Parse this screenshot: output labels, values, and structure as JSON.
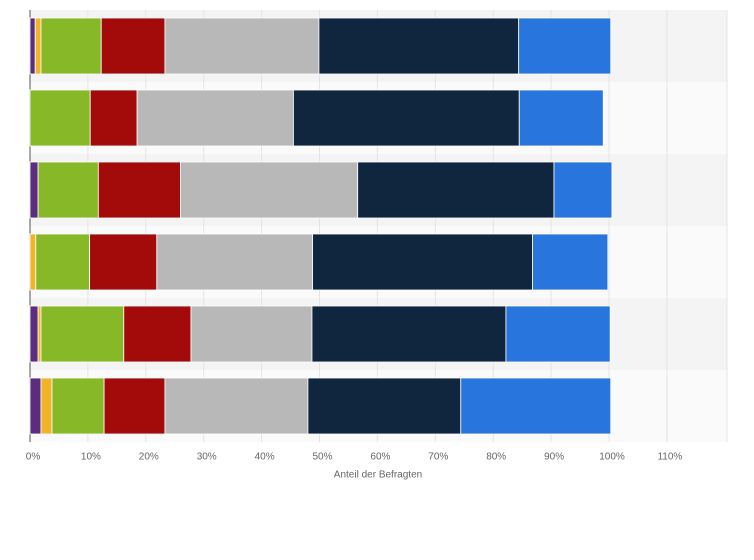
{
  "chart_data": {
    "type": "stacked-bar-horizontal",
    "x_label": "Anteil der Befragten",
    "categories": [
      null,
      null,
      null,
      null,
      null,
      null
    ],
    "series": [
      {
        "color": "#5c2d7f",
        "values": [
          0.9,
          0,
          1.4,
          0,
          1.4,
          1.9
        ]
      },
      {
        "color": "#f0b429",
        "values": [
          1,
          0,
          0,
          1,
          0.5,
          1.9
        ]
      },
      {
        "color": "#86b828",
        "values": [
          10.4,
          10.4,
          10.4,
          9.3,
          14.3,
          9
        ]
      },
      {
        "color": "#a30a0a",
        "values": [
          11,
          8.1,
          14.2,
          11.6,
          11.6,
          10.5
        ]
      },
      {
        "color": "#b8b8b8",
        "values": [
          26.6,
          27,
          30.6,
          26.9,
          20.9,
          24.7
        ]
      },
      {
        "color": "#10263f",
        "values": [
          34.5,
          39,
          33.9,
          38,
          33.5,
          26.4
        ]
      },
      {
        "color": "#2876dd",
        "values": [
          15.9,
          14.5,
          10,
          13,
          18,
          25.9
        ]
      }
    ],
    "xlim": [
      0,
      120
    ],
    "xticks": [
      {
        "value": 0,
        "label": "0%"
      },
      {
        "value": 10,
        "label": "10%"
      },
      {
        "value": 20,
        "label": "20%"
      },
      {
        "value": 30,
        "label": "30%"
      },
      {
        "value": 40,
        "label": "40%"
      },
      {
        "value": 50,
        "label": "50%"
      },
      {
        "value": 60,
        "label": "60%"
      },
      {
        "value": 70,
        "label": "70%"
      },
      {
        "value": 80,
        "label": "80%"
      },
      {
        "value": 90,
        "label": "90%"
      },
      {
        "value": 100,
        "label": "100%"
      },
      {
        "value": 110,
        "label": "110%"
      }
    ],
    "grid": true
  }
}
